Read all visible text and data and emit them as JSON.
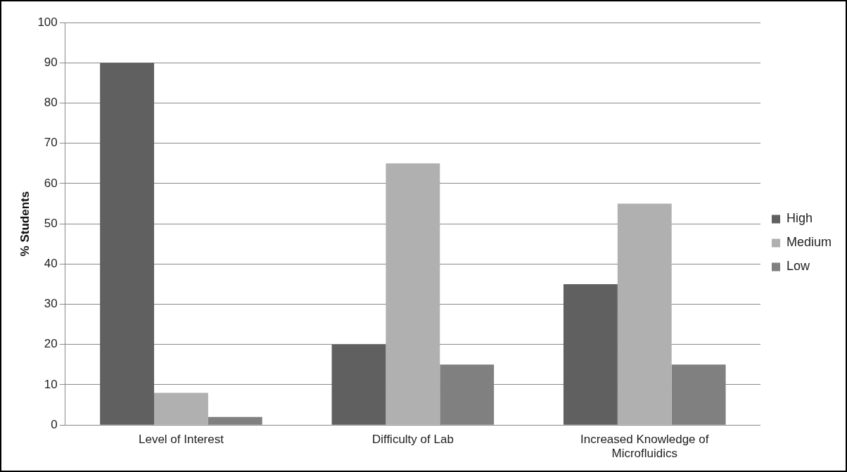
{
  "chart_data": {
    "type": "bar",
    "ylabel": "% Students",
    "categories": [
      "Level of Interest",
      "Difficulty of Lab",
      "Increased Knowledge of Microfluidics"
    ],
    "series": [
      {
        "name": "High",
        "color": "#606060",
        "values": [
          90,
          20,
          35
        ]
      },
      {
        "name": "Medium",
        "color": "#b0b0b0",
        "values": [
          8,
          65,
          55
        ]
      },
      {
        "name": "Low",
        "color": "#808080",
        "values": [
          2,
          15,
          15
        ]
      }
    ],
    "ylim": [
      0,
      100
    ],
    "yticks": [
      0,
      10,
      20,
      30,
      40,
      50,
      60,
      70,
      80,
      90,
      100
    ],
    "grid": "y",
    "legend": "right"
  }
}
